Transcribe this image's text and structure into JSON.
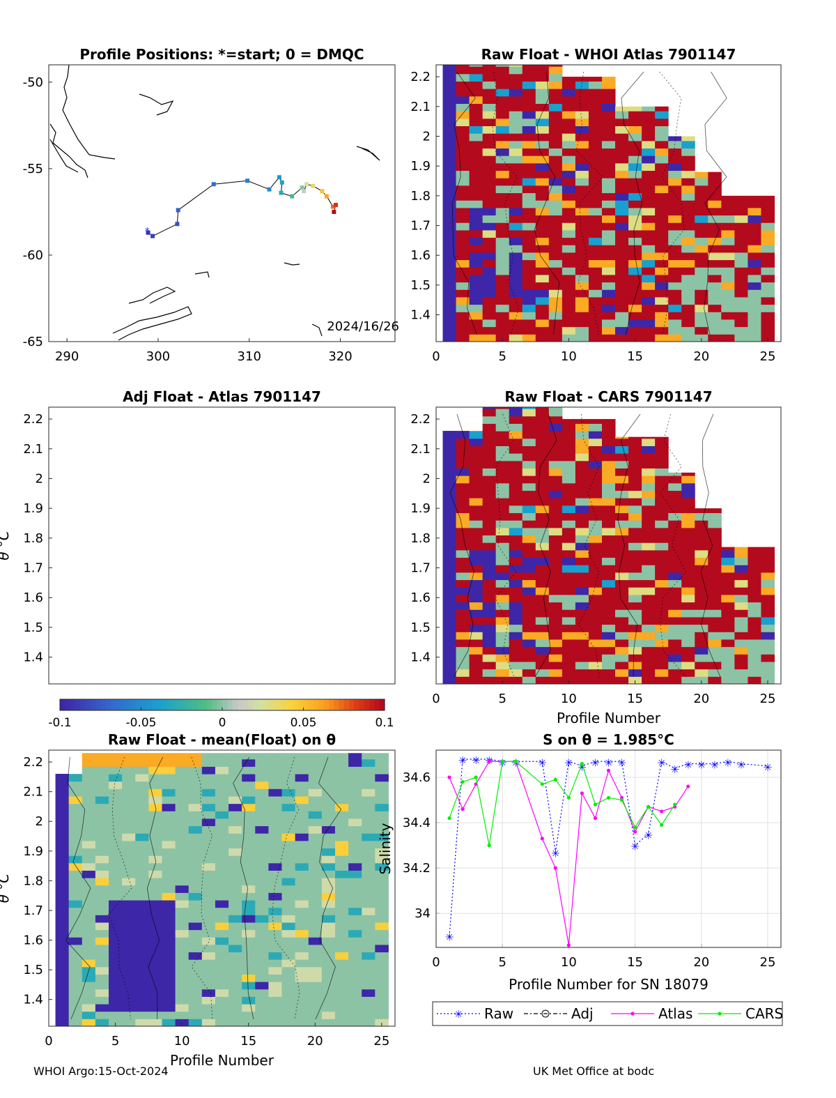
{
  "footer": {
    "left": "WHOI Argo:15-Oct-2024",
    "right": "UK Met Office at bodc"
  },
  "colorbar": {
    "ticks": [
      "-0.1",
      "-0.05",
      "0",
      "0.05",
      "0.1"
    ],
    "range": [
      -0.1,
      0.1
    ]
  },
  "chart_data": [
    {
      "type": "scatter",
      "panel": "positions",
      "title": "Profile Positions: *=start; 0 = DMQC",
      "xlim": [
        288,
        326
      ],
      "ylim": [
        -65,
        -49
      ],
      "xticks": [
        "290",
        "300",
        "310",
        "320"
      ],
      "yticks": [
        "-50",
        "-55",
        "-60",
        "-65"
      ],
      "annotation": "2024/16/26",
      "track": [
        {
          "lon": 298.9,
          "lat": -58.7
        },
        {
          "lon": 299.4,
          "lat": -58.9
        },
        {
          "lon": 302.1,
          "lat": -58.2
        },
        {
          "lon": 302.2,
          "lat": -57.4
        },
        {
          "lon": 306.1,
          "lat": -55.9
        },
        {
          "lon": 309.8,
          "lat": -55.7
        },
        {
          "lon": 312.2,
          "lat": -56.2
        },
        {
          "lon": 313.3,
          "lat": -55.5
        },
        {
          "lon": 313.6,
          "lat": -55.8
        },
        {
          "lon": 313.5,
          "lat": -56.4
        },
        {
          "lon": 314.7,
          "lat": -56.6
        },
        {
          "lon": 315.8,
          "lat": -56.1
        },
        {
          "lon": 316.0,
          "lat": -56.3
        },
        {
          "lon": 316.3,
          "lat": -55.9
        },
        {
          "lon": 317.0,
          "lat": -56.0
        },
        {
          "lon": 318.0,
          "lat": -56.3
        },
        {
          "lon": 318.5,
          "lat": -56.6
        },
        {
          "lon": 319.2,
          "lat": -57.2
        },
        {
          "lon": 319.5,
          "lat": -57.1
        },
        {
          "lon": 319.3,
          "lat": -57.5
        }
      ]
    },
    {
      "type": "heatmap",
      "panel": "raw-whoi",
      "title": "Raw Float - WHOI Atlas  7901147",
      "xlim": [
        0,
        26
      ],
      "ylim": [
        1.31,
        2.24
      ],
      "xticks": [
        "0",
        "5",
        "10",
        "15",
        "20",
        "25"
      ],
      "yticks": [
        "2.2",
        "2.1",
        "2",
        "1.9",
        "1.8",
        "1.7",
        "1.6",
        "1.5",
        "1.4"
      ]
    },
    {
      "type": "heatmap",
      "panel": "adj-atlas",
      "title": "Adj Float - Atlas  7901147",
      "ylabel": "θ °C",
      "xlim": [
        0,
        26
      ],
      "ylim": [
        1.31,
        2.24
      ],
      "yticks": [
        "2.2",
        "2.1",
        "2",
        "1.9",
        "1.8",
        "1.7",
        "1.6",
        "1.5",
        "1.4"
      ]
    },
    {
      "type": "heatmap",
      "panel": "raw-cars",
      "title": "Raw Float - CARS  7901147",
      "xlabel": "Profile Number",
      "xlim": [
        0,
        26
      ],
      "ylim": [
        1.31,
        2.24
      ],
      "xticks": [
        "0",
        "5",
        "10",
        "15",
        "20",
        "25"
      ],
      "yticks": [
        "2.2",
        "2.1",
        "2",
        "1.9",
        "1.8",
        "1.7",
        "1.6",
        "1.5",
        "1.4"
      ]
    },
    {
      "type": "heatmap",
      "panel": "raw-mean",
      "title": "Raw Float - mean(Float) on θ",
      "xlabel": "Profile Number",
      "ylabel": "θ °C",
      "xlim": [
        0,
        26
      ],
      "ylim": [
        1.31,
        2.24
      ],
      "xticks": [
        "0",
        "5",
        "10",
        "15",
        "20",
        "25"
      ],
      "yticks": [
        "2.2",
        "2.1",
        "2",
        "1.9",
        "1.8",
        "1.7",
        "1.6",
        "1.5",
        "1.4"
      ]
    },
    {
      "type": "line",
      "panel": "salinity",
      "title": "S on θ = 1.985°C",
      "xlabel": "Profile Number for SN 18079",
      "ylabel": "Salinity",
      "xlim": [
        0,
        26
      ],
      "ylim": [
        33.85,
        34.72
      ],
      "xticks": [
        "0",
        "5",
        "10",
        "15",
        "20",
        "25"
      ],
      "yticks": [
        "34.6",
        "34.4",
        "34.2",
        "34"
      ],
      "legend": [
        "Raw",
        "Adj",
        "Atlas",
        "CARS"
      ],
      "series": [
        {
          "name": "Raw",
          "color": "#0000ff",
          "x": [
            1,
            2,
            3,
            4,
            5,
            6,
            8,
            9,
            10,
            11,
            12,
            13,
            14,
            15,
            16,
            17,
            18,
            19,
            20,
            21,
            22,
            23,
            25
          ],
          "y": [
            33.9,
            34.68,
            34.68,
            34.68,
            34.67,
            34.67,
            34.67,
            34.27,
            34.67,
            34.65,
            34.67,
            34.67,
            34.67,
            34.3,
            34.35,
            34.67,
            34.64,
            34.66,
            34.66,
            34.66,
            34.67,
            34.66,
            34.65
          ]
        },
        {
          "name": "Atlas",
          "color": "#ff00ff",
          "x": [
            1,
            2,
            3,
            4,
            5,
            6,
            8,
            9,
            10,
            11,
            12,
            13,
            14,
            15,
            16,
            17,
            18,
            19
          ],
          "y": [
            34.6,
            34.46,
            34.57,
            34.67,
            34.67,
            34.67,
            34.33,
            34.2,
            33.86,
            34.53,
            34.42,
            34.63,
            34.51,
            34.36,
            34.47,
            34.45,
            34.47,
            34.56
          ]
        },
        {
          "name": "CARS",
          "color": "#00ee00",
          "x": [
            1,
            2,
            3,
            4,
            5,
            6,
            8,
            9,
            10,
            11,
            12,
            13,
            14,
            15,
            16,
            17,
            18
          ],
          "y": [
            34.42,
            34.58,
            34.6,
            34.3,
            34.67,
            34.67,
            34.57,
            34.59,
            34.51,
            34.66,
            34.48,
            34.51,
            34.5,
            34.38,
            34.47,
            34.39,
            34.48
          ]
        }
      ]
    }
  ]
}
